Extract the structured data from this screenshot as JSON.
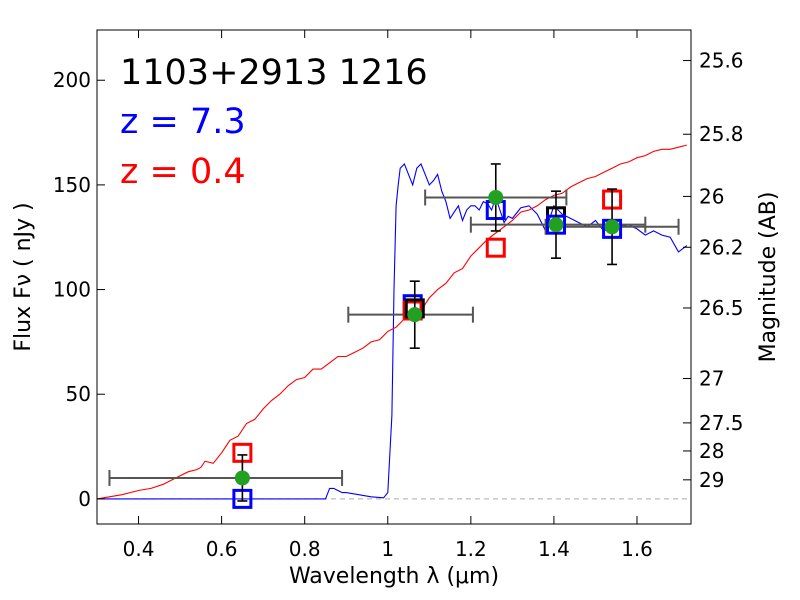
{
  "chart_data": {
    "type": "line",
    "title_lines": [
      "1103+2913 1216",
      "z = 7.3",
      "z = 0.4"
    ],
    "title_colors": [
      "#000000",
      "#0000ff",
      "#ff0000"
    ],
    "xlabel": "Wavelength  λ (μm)",
    "ylabel": "Flux  Fν  ( nJy )",
    "ylabel_right": "Magnitude (AB)",
    "xlim": [
      0.3,
      1.73
    ],
    "ylim": [
      -12,
      224
    ],
    "x_ticks": [
      0.4,
      0.6,
      0.8,
      1.0,
      1.2,
      1.4,
      1.6
    ],
    "x_tick_labels": [
      "0.4",
      "0.6",
      "0.8",
      "1",
      "1.2",
      "1.4",
      "1.6"
    ],
    "y_ticks": [
      0,
      50,
      100,
      150,
      200
    ],
    "y_tick_labels": [
      "0",
      "50",
      "100",
      "150",
      "200"
    ],
    "mag_ticks": [
      {
        "label": "25.6",
        "flux": 209.4
      },
      {
        "label": "25.8",
        "flux": 174.2
      },
      {
        "label": "26",
        "flux": 144.5
      },
      {
        "label": "26.2",
        "flux": 120.2
      },
      {
        "label": "26.5",
        "flux": 91.2
      },
      {
        "label": "27",
        "flux": 57.5
      },
      {
        "label": "27.5",
        "flux": 36.3
      },
      {
        "label": "28",
        "flux": 22.9
      },
      {
        "label": "29",
        "flux": 9.1
      }
    ],
    "zero_line": 0,
    "colors": {
      "highz": "#0000ff",
      "lowz": "#ff0000",
      "observed": "#22a022",
      "errorbar": "#000000",
      "filter": "#555555",
      "zero": "#aaaaaa"
    },
    "series": [
      {
        "name": "z = 7.3 template",
        "color": "#0000ff",
        "x": [
          0.3,
          0.35,
          0.4,
          0.45,
          0.5,
          0.55,
          0.6,
          0.65,
          0.7,
          0.75,
          0.8,
          0.85,
          0.86,
          0.87,
          0.88,
          0.89,
          0.9,
          0.93,
          0.96,
          0.99,
          1.0,
          1.01,
          1.015,
          1.02,
          1.025,
          1.03,
          1.04,
          1.05,
          1.06,
          1.07,
          1.08,
          1.09,
          1.1,
          1.11,
          1.12,
          1.13,
          1.14,
          1.15,
          1.16,
          1.17,
          1.18,
          1.19,
          1.2,
          1.21,
          1.22,
          1.23,
          1.24,
          1.25,
          1.26,
          1.27,
          1.28,
          1.29,
          1.3,
          1.32,
          1.34,
          1.36,
          1.38,
          1.4,
          1.42,
          1.44,
          1.46,
          1.48,
          1.5,
          1.52,
          1.54,
          1.56,
          1.58,
          1.6,
          1.62,
          1.64,
          1.66,
          1.68,
          1.7,
          1.72
        ],
        "y": [
          0,
          0,
          0,
          0,
          0,
          0,
          0,
          0,
          0,
          0,
          0,
          0,
          5,
          5,
          4,
          3,
          3,
          2,
          1,
          0.5,
          3,
          40,
          100,
          140,
          150,
          158,
          160,
          155,
          150,
          158,
          160,
          155,
          150,
          152,
          155,
          147,
          142,
          134,
          137,
          140,
          133,
          138,
          140,
          140,
          138,
          142,
          141,
          138,
          144,
          138,
          132,
          135,
          134,
          139,
          140,
          136,
          128,
          140,
          136,
          134,
          132,
          130,
          133,
          128,
          130,
          130,
          131,
          129,
          126,
          128,
          126,
          125,
          118,
          121
        ]
      },
      {
        "name": "z = 0.4 template",
        "color": "#ff0000",
        "x": [
          0.3,
          0.33,
          0.36,
          0.4,
          0.43,
          0.46,
          0.49,
          0.52,
          0.54,
          0.55,
          0.56,
          0.58,
          0.6,
          0.62,
          0.64,
          0.66,
          0.68,
          0.7,
          0.72,
          0.74,
          0.76,
          0.78,
          0.8,
          0.82,
          0.84,
          0.86,
          0.88,
          0.9,
          0.92,
          0.94,
          0.96,
          0.98,
          1.0,
          1.02,
          1.04,
          1.06,
          1.08,
          1.1,
          1.12,
          1.14,
          1.16,
          1.18,
          1.2,
          1.22,
          1.24,
          1.26,
          1.28,
          1.3,
          1.32,
          1.34,
          1.36,
          1.38,
          1.4,
          1.42,
          1.44,
          1.46,
          1.48,
          1.5,
          1.52,
          1.54,
          1.56,
          1.58,
          1.6,
          1.62,
          1.64,
          1.66,
          1.68,
          1.7,
          1.72
        ],
        "y": [
          0,
          1,
          2,
          4,
          5,
          7,
          10,
          13,
          14,
          15,
          18,
          17,
          22,
          28,
          30,
          36,
          38,
          43,
          47,
          50,
          54,
          57,
          58,
          62,
          62,
          65,
          68,
          68,
          70,
          72,
          75,
          76,
          80,
          82,
          86,
          88,
          90,
          96,
          100,
          103,
          108,
          110,
          116,
          120,
          124,
          127,
          130,
          133,
          137,
          138,
          140,
          143,
          145,
          146,
          149,
          151,
          153,
          154,
          156,
          158,
          160,
          161,
          163,
          164,
          166,
          167,
          167,
          168,
          169
        ]
      }
    ],
    "filters": [
      {
        "center": 0.61,
        "half_width": 0.28,
        "flux": 10
      },
      {
        "center": 1.055,
        "half_width": 0.15,
        "flux": 88
      },
      {
        "center": 1.26,
        "half_width": 0.17,
        "flux": 144
      },
      {
        "center": 1.41,
        "half_width": 0.21,
        "flux": 131
      },
      {
        "center": 1.54,
        "half_width": 0.16,
        "flux": 130
      }
    ],
    "observed": [
      {
        "x": 0.65,
        "y": 10,
        "err": 11
      },
      {
        "x": 1.065,
        "y": 88,
        "err": 16
      },
      {
        "x": 1.26,
        "y": 144,
        "err": 16
      },
      {
        "x": 1.405,
        "y": 131,
        "err": 16
      },
      {
        "x": 1.54,
        "y": 130,
        "err": 18
      }
    ],
    "model_boxes": [
      {
        "x": 0.65,
        "y": 0,
        "color": "#0000ff"
      },
      {
        "x": 0.65,
        "y": 22,
        "color": "#ff0000"
      },
      {
        "x": 1.06,
        "y": 93,
        "color": "#0000ff"
      },
      {
        "x": 1.06,
        "y": 90,
        "color": "#ff0000"
      },
      {
        "x": 1.065,
        "y": 91,
        "color": "#000000"
      },
      {
        "x": 1.26,
        "y": 138,
        "color": "#0000ff"
      },
      {
        "x": 1.26,
        "y": 120,
        "color": "#ff0000"
      },
      {
        "x": 1.405,
        "y": 135,
        "color": "#000000"
      },
      {
        "x": 1.405,
        "y": 131,
        "color": "#0000ff"
      },
      {
        "x": 1.54,
        "y": 143,
        "color": "#ff0000"
      },
      {
        "x": 1.54,
        "y": 129,
        "color": "#0000ff"
      }
    ]
  }
}
